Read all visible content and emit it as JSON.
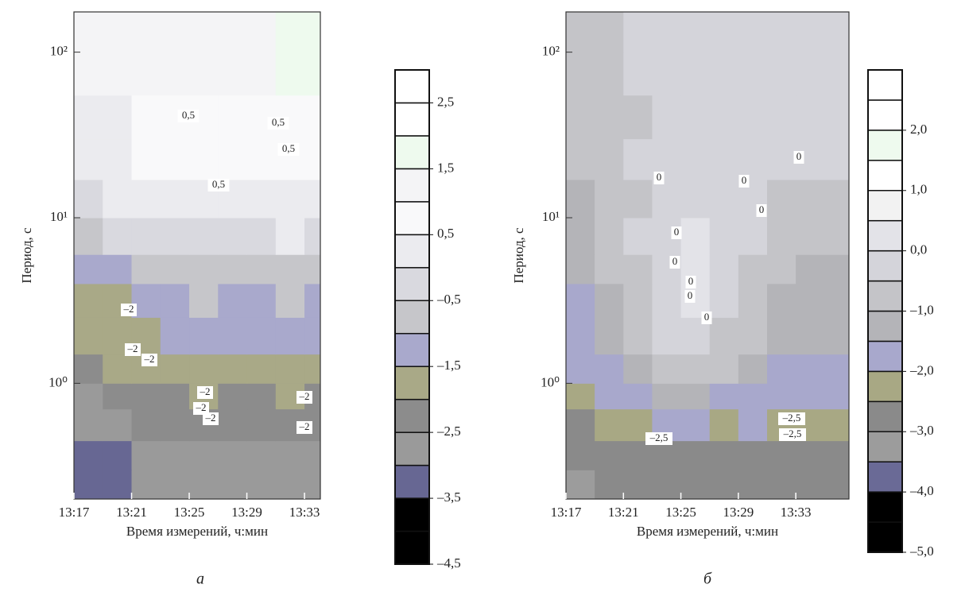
{
  "chart_data": [
    {
      "type": "contour",
      "panel_label": "а",
      "xlabel": "Время измерений, ч:мин",
      "ylabel": "Период, с",
      "log_y": true,
      "xlim": [
        797,
        814.1
      ],
      "ylim": [
        0.2,
        175
      ],
      "xticks": [
        {
          "value": 797,
          "label": "13:17"
        },
        {
          "value": 801,
          "label": "13:21"
        },
        {
          "value": 805,
          "label": "13:25"
        },
        {
          "value": 809,
          "label": "13:29"
        },
        {
          "value": 813,
          "label": "13:33"
        }
      ],
      "yticks": [
        {
          "value": 1,
          "label": "10⁰"
        },
        {
          "value": 10,
          "label": "10¹"
        },
        {
          "value": 100,
          "label": "10²"
        }
      ],
      "x_edges": [
        797,
        799,
        801,
        803,
        805,
        807,
        809,
        811,
        813,
        814.1
      ],
      "y_edges": [
        0.2,
        0.3,
        0.45,
        0.7,
        1,
        1.5,
        2.5,
        4,
        6,
        10,
        17,
        30,
        55,
        100,
        175
      ],
      "z": [
        [
          -3.2,
          -3.3,
          -2.8,
          -2.7,
          -2.8,
          -2.7,
          -2.8,
          -2.8,
          -2.7
        ],
        [
          -3.3,
          -3.2,
          -2.7,
          -2.6,
          -2.6,
          -2.6,
          -2.6,
          -2.6,
          -2.6
        ],
        [
          -2.7,
          -2.6,
          -2.5,
          -2.3,
          -2.4,
          -2.3,
          -2.2,
          -2.3,
          -2.3
        ],
        [
          -2.6,
          -2.3,
          -2.2,
          -2.1,
          -2.0,
          -2.1,
          -2.2,
          -2.0,
          -2.1
        ],
        [
          -2.2,
          -1.8,
          -1.8,
          -1.7,
          -1.6,
          -1.7,
          -1.6,
          -1.8,
          -1.7
        ],
        [
          -1.8,
          -1.6,
          -1.7,
          -1.3,
          -1.2,
          -1.3,
          -1.2,
          -1.3,
          -1.4
        ],
        [
          -1.6,
          -1.7,
          -1.3,
          -1.1,
          -0.9,
          -1.1,
          -1.2,
          -1.0,
          -1.1
        ],
        [
          -1.2,
          -1.1,
          -0.8,
          -0.7,
          -0.6,
          -0.7,
          -0.8,
          -0.6,
          -0.7
        ],
        [
          -0.6,
          -0.5,
          -0.3,
          -0.2,
          -0.1,
          -0.2,
          -0.1,
          0.0,
          -0.2
        ],
        [
          -0.2,
          0.1,
          0.2,
          0.3,
          0.4,
          0.3,
          0.2,
          0.3,
          0.3
        ],
        [
          0.2,
          0.3,
          0.5,
          0.6,
          0.6,
          0.7,
          0.5,
          0.6,
          0.6
        ],
        [
          0.3,
          0.4,
          0.6,
          0.7,
          0.8,
          0.7,
          0.6,
          0.7,
          0.8
        ],
        [
          1.0,
          1.1,
          1.1,
          1.2,
          1.1,
          1.2,
          1.3,
          1.6,
          1.7
        ],
        [
          1.1,
          1.2,
          1.2,
          1.2,
          1.2,
          1.3,
          1.4,
          1.7,
          1.7
        ]
      ],
      "levels": [
        -4.5,
        -4.0,
        -3.5,
        -3.0,
        -2.5,
        -2.0,
        -1.5,
        -1.0,
        -0.5,
        0.0,
        0.5,
        1.0,
        1.5,
        2.0,
        2.5,
        3.0
      ],
      "colors": [
        "#000000",
        "#000000",
        "#676793",
        "#9a9a9a",
        "#8c8c8c",
        "#a9a987",
        "#a9a9cc",
        "#c6c6ca",
        "#d9d9df",
        "#ebebef",
        "#f9f9fa",
        "#f4f4f6",
        "#eefaee",
        "#ffffff",
        "#ffffff"
      ],
      "cticks": [
        {
          "value": 2.5,
          "label": "2,5"
        },
        {
          "value": 1.5,
          "label": "1,5"
        },
        {
          "value": 0.5,
          "label": "0,5"
        },
        {
          "value": -0.5,
          "label": "–0,5"
        },
        {
          "value": -1.5,
          "label": "–1,5"
        },
        {
          "value": -2.5,
          "label": "–2,5"
        },
        {
          "value": -3.5,
          "label": "–3,5"
        },
        {
          "value": -4.5,
          "label": "–4,5"
        }
      ],
      "annotations": [
        "0,5",
        "0,5",
        "0,5",
        "0,5",
        "–2",
        "–2",
        "–2",
        "–2",
        "–2",
        "–2",
        "–2",
        "–2"
      ]
    },
    {
      "type": "contour",
      "panel_label": "б",
      "xlabel": "Время измерений, ч:мин",
      "ylabel": "Период, с",
      "log_y": true,
      "xlim": [
        797,
        816.7
      ],
      "ylim": [
        0.2,
        175
      ],
      "xticks": [
        {
          "value": 797,
          "label": "13:17"
        },
        {
          "value": 801,
          "label": "13:21"
        },
        {
          "value": 805,
          "label": "13:25"
        },
        {
          "value": 809,
          "label": "13:29"
        },
        {
          "value": 813,
          "label": "13:33"
        }
      ],
      "yticks": [
        {
          "value": 1,
          "label": "10⁰"
        },
        {
          "value": 10,
          "label": "10¹"
        },
        {
          "value": 100,
          "label": "10²"
        }
      ],
      "x_edges": [
        797,
        799,
        801,
        803,
        805,
        807,
        809,
        811,
        813,
        816.7
      ],
      "y_edges": [
        0.2,
        0.3,
        0.45,
        0.7,
        1,
        1.5,
        2.5,
        4,
        6,
        10,
        17,
        30,
        55,
        100,
        175
      ],
      "z": [
        [
          -3.4,
          -3.0,
          -2.8,
          -2.8,
          -2.7,
          -2.7,
          -2.8,
          -2.7,
          -2.8
        ],
        [
          -3.0,
          -2.8,
          -2.7,
          -2.6,
          -2.6,
          -2.6,
          -2.6,
          -2.6,
          -2.6
        ],
        [
          -2.6,
          -2.4,
          -2.2,
          -2.0,
          -2.0,
          -2.1,
          -1.9,
          -2.2,
          -2.3
        ],
        [
          -2.2,
          -2.0,
          -1.8,
          -1.5,
          -1.5,
          -1.6,
          -1.8,
          -1.9,
          -1.8
        ],
        [
          -2.0,
          -1.8,
          -1.4,
          -1.0,
          -0.9,
          -1.0,
          -1.4,
          -1.7,
          -1.6
        ],
        [
          -1.8,
          -1.5,
          -1.0,
          -0.5,
          -0.4,
          -0.6,
          -1.0,
          -1.4,
          -1.5
        ],
        [
          -1.6,
          -1.3,
          -0.7,
          -0.2,
          0.1,
          -0.2,
          -0.8,
          -1.2,
          -1.4
        ],
        [
          -1.4,
          -1.0,
          -0.6,
          -0.1,
          0.2,
          -0.1,
          -0.6,
          -0.9,
          -1.1
        ],
        [
          -1.3,
          -0.9,
          -0.5,
          -0.2,
          0.0,
          -0.2,
          -0.5,
          -0.8,
          -0.9
        ],
        [
          -1.4,
          -1.0,
          -0.6,
          -0.4,
          -0.2,
          -0.3,
          -0.4,
          -0.6,
          -0.7
        ],
        [
          -0.9,
          -0.8,
          -0.5,
          -0.3,
          -0.3,
          -0.2,
          -0.1,
          -0.3,
          -0.4
        ],
        [
          -0.9,
          -0.8,
          -0.6,
          -0.4,
          -0.3,
          -0.2,
          -0.3,
          -0.4,
          -0.5
        ],
        [
          -0.7,
          -0.6,
          -0.4,
          -0.3,
          -0.3,
          -0.4,
          -0.5,
          -0.5,
          -0.4
        ],
        [
          -0.8,
          -0.6,
          -0.4,
          -0.3,
          -0.4,
          -0.4,
          -0.5,
          -0.4,
          -0.3
        ]
      ],
      "levels": [
        -5.0,
        -4.5,
        -4.0,
        -3.5,
        -3.0,
        -2.5,
        -2.0,
        -1.5,
        -1.0,
        -0.5,
        0.0,
        0.5,
        1.0,
        1.5,
        2.0,
        2.5,
        3.0
      ],
      "colors": [
        "#000000",
        "#000000",
        "#6a6a96",
        "#9c9c9c",
        "#8a8a8a",
        "#a8a884",
        "#a8a8cc",
        "#b4b4b8",
        "#c4c4c8",
        "#d4d4da",
        "#e3e3e8",
        "#f2f2f2",
        "#ffffff",
        "#eefaee",
        "#ffffff",
        "#ffffff"
      ],
      "cticks": [
        {
          "value": 2.0,
          "label": "2,0"
        },
        {
          "value": 1.0,
          "label": "1,0"
        },
        {
          "value": 0.0,
          "label": "0,0"
        },
        {
          "value": -1.0,
          "label": "–1,0"
        },
        {
          "value": -2.0,
          "label": "–2,0"
        },
        {
          "value": -3.0,
          "label": "–3,0"
        },
        {
          "value": -4.0,
          "label": "–4,0"
        },
        {
          "value": -5.0,
          "label": "–5,0"
        }
      ],
      "annotations": [
        "0",
        "0",
        "0",
        "0",
        "0",
        "0",
        "0",
        "0",
        "0",
        "–2,5",
        "–2,5",
        "–2,5"
      ]
    }
  ]
}
